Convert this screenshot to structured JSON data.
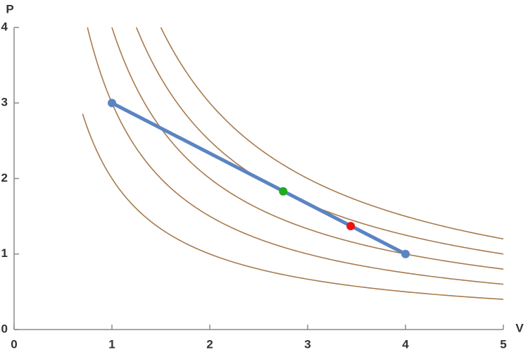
{
  "chart_data": {
    "type": "line",
    "x_label": "V",
    "y_label": "P",
    "xlim": [
      0,
      5
    ],
    "ylim": [
      0,
      4
    ],
    "xticks": [
      0,
      1,
      2,
      3,
      4,
      5
    ],
    "yticks": [
      0,
      1,
      2,
      3,
      4
    ],
    "isotherms": {
      "constants": [
        2,
        3,
        4,
        5,
        6
      ],
      "x_range": [
        0.7,
        5
      ],
      "color": "#a87a4e"
    },
    "series": [
      {
        "x": [
          1,
          4
        ],
        "y": [
          3,
          1
        ],
        "color": "#5b84c1"
      }
    ],
    "markers": [
      {
        "x": 2.75,
        "y": 1.83,
        "color": "#1faa1f"
      },
      {
        "x": 3.44,
        "y": 1.37,
        "color": "#ee1111"
      }
    ]
  }
}
